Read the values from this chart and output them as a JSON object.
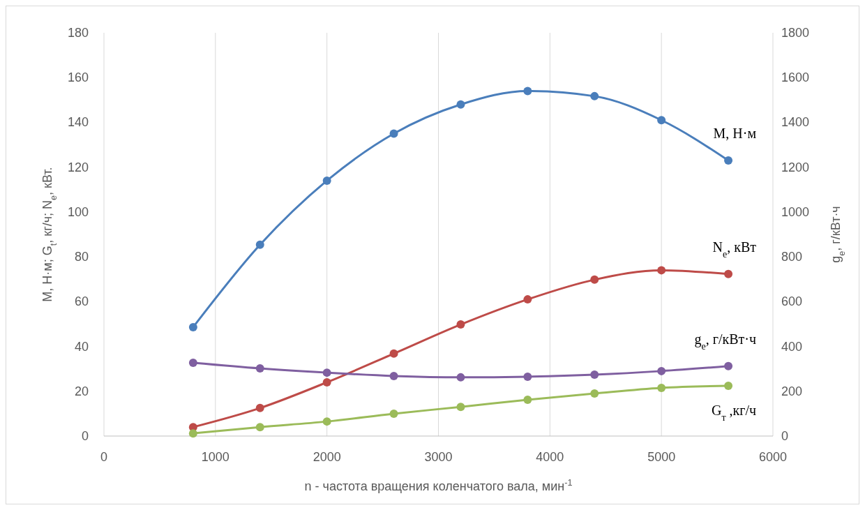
{
  "chart_data": {
    "type": "line",
    "xlabel": "n - частота вращения коленчатого вала, мин$^{-1}$",
    "ylabel": "M, Н·м; G$_{t}$, кг/ч; N$_{e}$, кВт.",
    "y2label": "g$_{e}$, г/кВт·ч",
    "x": [
      800,
      1400,
      2000,
      2600,
      3200,
      3800,
      4400,
      5000,
      5600
    ],
    "xlim": [
      0,
      6000
    ],
    "xticks": [
      0,
      1000,
      2000,
      3000,
      4000,
      5000,
      6000
    ],
    "ylim": [
      0,
      180
    ],
    "yticks": [
      0,
      20,
      40,
      60,
      80,
      100,
      120,
      140,
      160,
      180
    ],
    "y2lim": [
      0,
      1800
    ],
    "y2ticks": [
      0,
      200,
      400,
      600,
      800,
      1000,
      1200,
      1400,
      1600,
      1800
    ],
    "grid": "x",
    "marker": "circle",
    "line_style": "solid",
    "series": [
      {
        "name": "M, Н·м",
        "color": "#4a7ebb",
        "values": [
          48.6,
          85.4,
          114,
          135,
          148,
          154,
          151.7,
          141,
          123
        ]
      },
      {
        "name": "N$_{e}$, кВт",
        "color": "#be4b48",
        "values": [
          4,
          12.5,
          24,
          36.8,
          49.8,
          61,
          69.8,
          74,
          72.3
        ]
      },
      {
        "name": "g$_{e}$, г/кВт·ч",
        "color": "#7f5fa0",
        "axis": "y2",
        "values": [
          327,
          302,
          283,
          268,
          262,
          265,
          274,
          290,
          312
        ]
      },
      {
        "name": "G$_{т}$ ,кг/ч",
        "color": "#9bbb59",
        "values": [
          1.2,
          4,
          6.5,
          10,
          13,
          16.2,
          19,
          21.5,
          22.4
        ]
      }
    ]
  }
}
